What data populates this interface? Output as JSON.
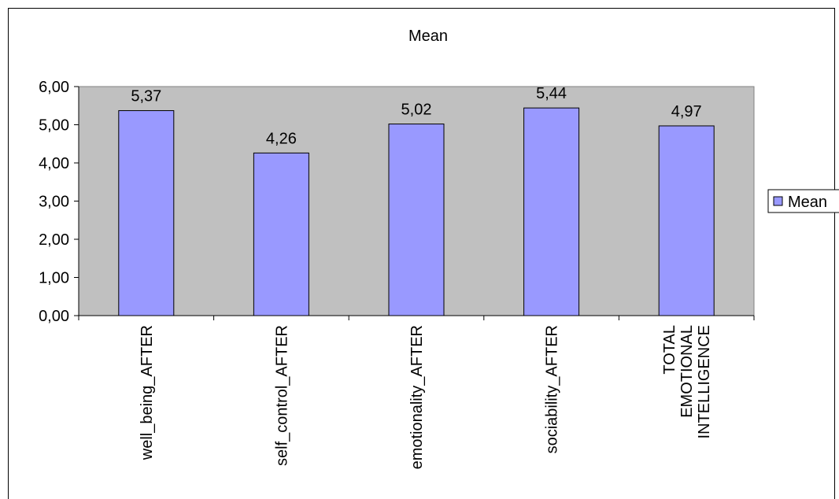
{
  "chart_data": {
    "type": "bar",
    "title": "Mean",
    "categories": [
      "well_being_AFTER",
      "self_control_AFTER",
      "emotionality_AFTER",
      "sociability_AFTER",
      "TOTAL EMOTIONAL INTELLIGENCE"
    ],
    "category_lines": [
      [
        "well_being_AFTER"
      ],
      [
        "self_control_AFTER"
      ],
      [
        "emotionality_AFTER"
      ],
      [
        "sociability_AFTER"
      ],
      [
        "TOTAL",
        "EMOTIONAL",
        "INTELLIGENCE"
      ]
    ],
    "series": [
      {
        "name": "Mean",
        "values": [
          5.37,
          4.26,
          5.02,
          5.44,
          4.97
        ]
      }
    ],
    "data_labels": [
      "5,37",
      "4,26",
      "5,02",
      "5,44",
      "4,97"
    ],
    "y_ticks": [
      0,
      1,
      2,
      3,
      4,
      5,
      6
    ],
    "y_tick_labels": [
      "0,00",
      "1,00",
      "2,00",
      "3,00",
      "4,00",
      "5,00",
      "6,00"
    ],
    "ylim": [
      0,
      6
    ],
    "grid": false,
    "legend_position": "right",
    "colors": {
      "bar": "#9999ff",
      "plot_bg": "#c0c0c0"
    }
  }
}
